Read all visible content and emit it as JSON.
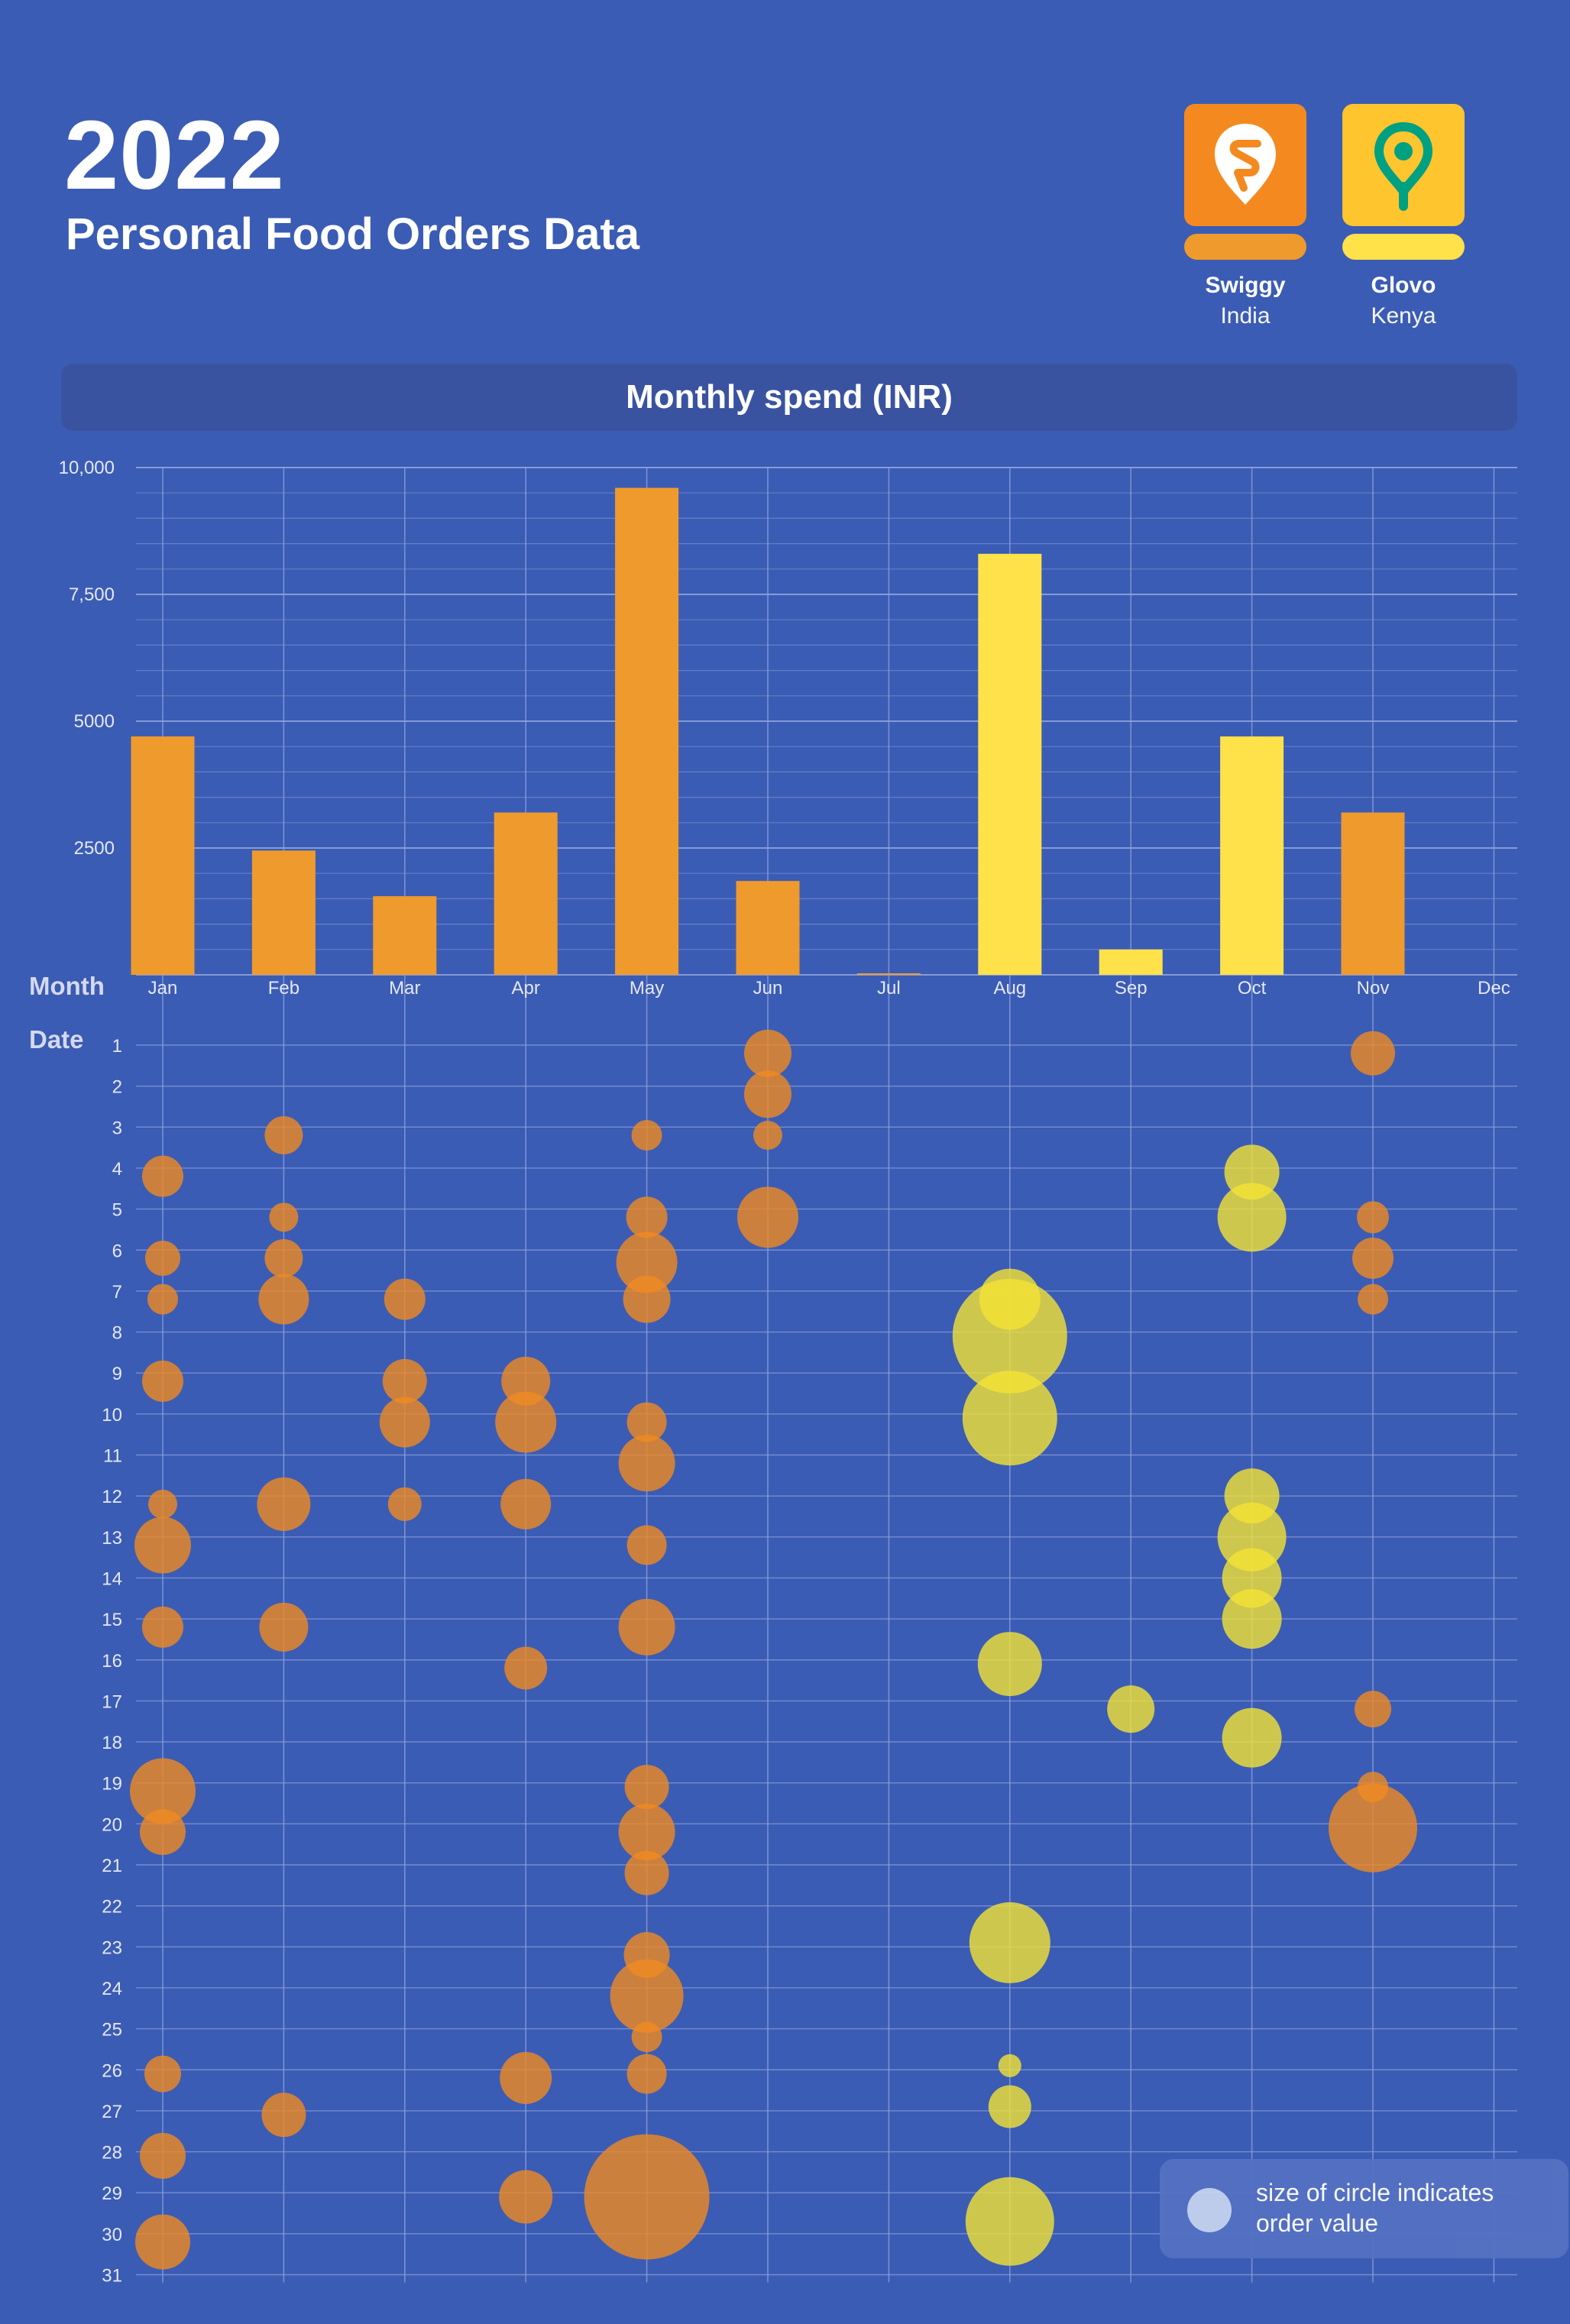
{
  "header": {
    "year": "2022",
    "subtitle": "Personal Food Orders Data"
  },
  "brands": [
    {
      "name": "Swiggy",
      "country": "India",
      "color": "#f39a1f",
      "icon": "swiggy-logo"
    },
    {
      "name": "Glovo",
      "country": "Kenya",
      "color": "#fec52e",
      "icon": "glovo-logo"
    }
  ],
  "colors": {
    "background": "#3b5cb4",
    "banner": "#3a53a0",
    "swiggy_bar": "#ef9a2c",
    "glovo_bar": "#ffe14a",
    "swiggy_bubble": "#f08a20",
    "glovo_bubble": "#f4e234",
    "grid": "#8fa2dc"
  },
  "labels": {
    "month_axis": "Month",
    "date_axis": "Date"
  },
  "legend": {
    "text_line1": "size of circle indicates",
    "text_line2": "order value"
  },
  "chart_data": [
    {
      "type": "bar",
      "title": "Monthly spend (INR)",
      "categories": [
        "Jan",
        "Feb",
        "Mar",
        "Apr",
        "May",
        "Jun",
        "Jul",
        "Aug",
        "Sep",
        "Oct",
        "Nov",
        "Dec"
      ],
      "values": [
        4700,
        2450,
        1550,
        3200,
        9600,
        1850,
        30,
        8300,
        500,
        4700,
        3200,
        0
      ],
      "platform": [
        "Swiggy",
        "Swiggy",
        "Swiggy",
        "Swiggy",
        "Swiggy",
        "Swiggy",
        "Swiggy",
        "Glovo",
        "Glovo",
        "Glovo",
        "Swiggy",
        "Swiggy"
      ],
      "ylim": [
        0,
        10000
      ],
      "yticks": [
        "10,000",
        "7,500",
        "5000",
        "2500"
      ],
      "ytick_values": [
        10000,
        7500,
        5000,
        2500
      ],
      "grid": true
    },
    {
      "type": "scatter",
      "xlabel": "Month",
      "ylabel": "Date",
      "categories": [
        "Jan",
        "Feb",
        "Mar",
        "Apr",
        "May",
        "Jun",
        "Jul",
        "Aug",
        "Sep",
        "Oct",
        "Nov",
        "Dec"
      ],
      "dates": [
        "1",
        "2",
        "3",
        "4",
        "5",
        "6",
        "7",
        "8",
        "9",
        "10",
        "11",
        "12",
        "13",
        "14",
        "15",
        "16",
        "17",
        "18",
        "19",
        "20",
        "21",
        "22",
        "23",
        "24",
        "25",
        "26",
        "27",
        "28",
        "29",
        "30",
        "31"
      ],
      "note": "size of circle indicates order value",
      "points": [
        {
          "m": "Jan",
          "d": 4.2,
          "s": 27,
          "p": "Swiggy"
        },
        {
          "m": "Jan",
          "d": 6.2,
          "s": 23,
          "p": "Swiggy"
        },
        {
          "m": "Jan",
          "d": 7.2,
          "s": 20,
          "p": "Swiggy"
        },
        {
          "m": "Jan",
          "d": 9.2,
          "s": 27,
          "p": "Swiggy"
        },
        {
          "m": "Jan",
          "d": 12.2,
          "s": 19,
          "p": "Swiggy"
        },
        {
          "m": "Jan",
          "d": 13.2,
          "s": 37,
          "p": "Swiggy"
        },
        {
          "m": "Jan",
          "d": 15.2,
          "s": 27,
          "p": "Swiggy"
        },
        {
          "m": "Jan",
          "d": 19.2,
          "s": 43,
          "p": "Swiggy"
        },
        {
          "m": "Jan",
          "d": 20.2,
          "s": 30,
          "p": "Swiggy"
        },
        {
          "m": "Jan",
          "d": 26.1,
          "s": 24,
          "p": "Swiggy"
        },
        {
          "m": "Jan",
          "d": 28.1,
          "s": 30,
          "p": "Swiggy"
        },
        {
          "m": "Jan",
          "d": 30.2,
          "s": 36,
          "p": "Swiggy"
        },
        {
          "m": "Feb",
          "d": 3.2,
          "s": 25,
          "p": "Swiggy"
        },
        {
          "m": "Feb",
          "d": 5.2,
          "s": 19,
          "p": "Swiggy"
        },
        {
          "m": "Feb",
          "d": 6.2,
          "s": 25,
          "p": "Swiggy"
        },
        {
          "m": "Feb",
          "d": 7.2,
          "s": 33,
          "p": "Swiggy"
        },
        {
          "m": "Feb",
          "d": 12.2,
          "s": 35,
          "p": "Swiggy"
        },
        {
          "m": "Feb",
          "d": 15.2,
          "s": 32,
          "p": "Swiggy"
        },
        {
          "m": "Feb",
          "d": 27.1,
          "s": 29,
          "p": "Swiggy"
        },
        {
          "m": "Mar",
          "d": 7.2,
          "s": 27,
          "p": "Swiggy"
        },
        {
          "m": "Mar",
          "d": 9.2,
          "s": 29,
          "p": "Swiggy"
        },
        {
          "m": "Mar",
          "d": 10.2,
          "s": 33,
          "p": "Swiggy"
        },
        {
          "m": "Mar",
          "d": 12.2,
          "s": 22,
          "p": "Swiggy"
        },
        {
          "m": "Apr",
          "d": 9.2,
          "s": 32,
          "p": "Swiggy"
        },
        {
          "m": "Apr",
          "d": 10.2,
          "s": 40,
          "p": "Swiggy"
        },
        {
          "m": "Apr",
          "d": 12.2,
          "s": 33,
          "p": "Swiggy"
        },
        {
          "m": "Apr",
          "d": 16.2,
          "s": 28,
          "p": "Swiggy"
        },
        {
          "m": "Apr",
          "d": 26.2,
          "s": 34,
          "p": "Swiggy"
        },
        {
          "m": "Apr",
          "d": 29.1,
          "s": 35,
          "p": "Swiggy"
        },
        {
          "m": "May",
          "d": 3.2,
          "s": 20,
          "p": "Swiggy"
        },
        {
          "m": "May",
          "d": 5.2,
          "s": 27,
          "p": "Swiggy"
        },
        {
          "m": "May",
          "d": 6.3,
          "s": 40,
          "p": "Swiggy"
        },
        {
          "m": "May",
          "d": 7.2,
          "s": 31,
          "p": "Swiggy"
        },
        {
          "m": "May",
          "d": 10.2,
          "s": 26,
          "p": "Swiggy"
        },
        {
          "m": "May",
          "d": 11.2,
          "s": 37,
          "p": "Swiggy"
        },
        {
          "m": "May",
          "d": 13.2,
          "s": 26,
          "p": "Swiggy"
        },
        {
          "m": "May",
          "d": 15.2,
          "s": 37,
          "p": "Swiggy"
        },
        {
          "m": "May",
          "d": 19.1,
          "s": 29,
          "p": "Swiggy"
        },
        {
          "m": "May",
          "d": 20.2,
          "s": 37,
          "p": "Swiggy"
        },
        {
          "m": "May",
          "d": 21.2,
          "s": 29,
          "p": "Swiggy"
        },
        {
          "m": "May",
          "d": 23.2,
          "s": 30,
          "p": "Swiggy"
        },
        {
          "m": "May",
          "d": 24.2,
          "s": 48,
          "p": "Swiggy"
        },
        {
          "m": "May",
          "d": 25.2,
          "s": 20,
          "p": "Swiggy"
        },
        {
          "m": "May",
          "d": 26.1,
          "s": 26,
          "p": "Swiggy"
        },
        {
          "m": "May",
          "d": 29.1,
          "s": 82,
          "p": "Swiggy"
        },
        {
          "m": "Jun",
          "d": 1.2,
          "s": 31,
          "p": "Swiggy"
        },
        {
          "m": "Jun",
          "d": 2.2,
          "s": 31,
          "p": "Swiggy"
        },
        {
          "m": "Jun",
          "d": 3.2,
          "s": 19,
          "p": "Swiggy"
        },
        {
          "m": "Jun",
          "d": 5.2,
          "s": 40,
          "p": "Swiggy"
        },
        {
          "m": "Aug",
          "d": 7.2,
          "s": 40,
          "p": "Glovo"
        },
        {
          "m": "Aug",
          "d": 8.1,
          "s": 75,
          "p": "Glovo"
        },
        {
          "m": "Aug",
          "d": 10.1,
          "s": 62,
          "p": "Glovo"
        },
        {
          "m": "Aug",
          "d": 16.1,
          "s": 42,
          "p": "Glovo"
        },
        {
          "m": "Aug",
          "d": 22.9,
          "s": 53,
          "p": "Glovo"
        },
        {
          "m": "Aug",
          "d": 25.9,
          "s": 15,
          "p": "Glovo"
        },
        {
          "m": "Aug",
          "d": 26.9,
          "s": 28,
          "p": "Glovo"
        },
        {
          "m": "Aug",
          "d": 29.7,
          "s": 58,
          "p": "Glovo"
        },
        {
          "m": "Sep",
          "d": 17.2,
          "s": 31,
          "p": "Glovo"
        },
        {
          "m": "Oct",
          "d": 4.1,
          "s": 36,
          "p": "Glovo"
        },
        {
          "m": "Oct",
          "d": 5.2,
          "s": 45,
          "p": "Glovo"
        },
        {
          "m": "Oct",
          "d": 12.0,
          "s": 36,
          "p": "Glovo"
        },
        {
          "m": "Oct",
          "d": 13.0,
          "s": 45,
          "p": "Glovo"
        },
        {
          "m": "Oct",
          "d": 14.0,
          "s": 39,
          "p": "Glovo"
        },
        {
          "m": "Oct",
          "d": 15.0,
          "s": 39,
          "p": "Glovo"
        },
        {
          "m": "Oct",
          "d": 17.9,
          "s": 39,
          "p": "Glovo"
        },
        {
          "m": "Nov",
          "d": 1.2,
          "s": 29,
          "p": "Swiggy"
        },
        {
          "m": "Nov",
          "d": 5.2,
          "s": 21,
          "p": "Swiggy"
        },
        {
          "m": "Nov",
          "d": 6.2,
          "s": 27,
          "p": "Swiggy"
        },
        {
          "m": "Nov",
          "d": 7.2,
          "s": 20,
          "p": "Swiggy"
        },
        {
          "m": "Nov",
          "d": 17.2,
          "s": 24,
          "p": "Swiggy"
        },
        {
          "m": "Nov",
          "d": 19.1,
          "s": 20,
          "p": "Swiggy"
        },
        {
          "m": "Nov",
          "d": 20.1,
          "s": 58,
          "p": "Swiggy"
        }
      ]
    }
  ]
}
